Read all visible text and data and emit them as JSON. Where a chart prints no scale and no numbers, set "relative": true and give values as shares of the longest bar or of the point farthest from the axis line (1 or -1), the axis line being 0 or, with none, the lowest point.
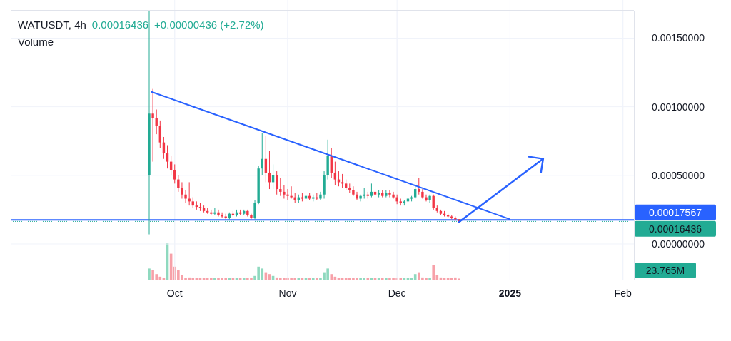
{
  "chart_data": [
    {
      "type": "candlestick",
      "title": "WATUSDT, 4h",
      "annotations": [
        "0.00016436",
        "+0.00000436 (+2.72%)"
      ],
      "x": [
        "2024-09-24",
        "2024-09-25",
        "2024-09-26",
        "2024-09-27",
        "2024-09-28",
        "2024-09-29",
        "2024-09-30",
        "2024-10-01",
        "2024-10-02",
        "2024-10-03",
        "2024-10-04",
        "2024-10-05",
        "2024-10-06",
        "2024-10-07",
        "2024-10-08",
        "2024-10-09",
        "2024-10-10",
        "2024-10-11",
        "2024-10-12",
        "2024-10-13",
        "2024-10-14",
        "2024-10-15",
        "2024-10-16",
        "2024-10-17",
        "2024-10-18",
        "2024-10-19",
        "2024-10-20",
        "2024-10-21",
        "2024-10-22",
        "2024-10-23",
        "2024-10-24",
        "2024-10-25",
        "2024-10-26",
        "2024-10-27",
        "2024-10-28",
        "2024-10-29",
        "2024-10-30",
        "2024-10-31",
        "2024-11-01",
        "2024-11-02",
        "2024-11-03",
        "2024-11-04",
        "2024-11-05",
        "2024-11-06",
        "2024-11-07",
        "2024-11-08",
        "2024-11-09",
        "2024-11-10",
        "2024-11-11",
        "2024-11-12",
        "2024-11-13",
        "2024-11-14",
        "2024-11-15",
        "2024-11-16",
        "2024-11-17",
        "2024-11-18",
        "2024-11-19",
        "2024-11-20",
        "2024-11-21",
        "2024-11-22",
        "2024-11-23",
        "2024-11-24",
        "2024-11-25",
        "2024-11-26",
        "2024-11-27",
        "2024-11-28",
        "2024-11-29",
        "2024-11-30",
        "2024-12-01",
        "2024-12-02",
        "2024-12-03",
        "2024-12-04",
        "2024-12-05",
        "2024-12-06",
        "2024-12-07",
        "2024-12-08",
        "2024-12-09",
        "2024-12-10",
        "2024-12-11",
        "2024-12-12",
        "2024-12-13",
        "2024-12-14",
        "2024-12-15",
        "2024-12-16",
        "2024-12-17",
        "2024-12-18"
      ],
      "ohlc": [
        [
          0.0005,
          0.0017,
          7e-05,
          0.00095
        ],
        [
          0.00095,
          0.00113,
          0.0006,
          0.00092
        ],
        [
          0.00092,
          0.00098,
          0.0008,
          0.00086
        ],
        [
          0.00086,
          0.0009,
          0.0007,
          0.00074
        ],
        [
          0.00074,
          0.00078,
          0.00062,
          0.00066
        ],
        [
          0.00066,
          0.00072,
          0.00055,
          0.0006
        ],
        [
          0.0006,
          0.00064,
          0.0005,
          0.00054
        ],
        [
          0.00054,
          0.00058,
          0.00044,
          0.00047
        ],
        [
          0.00047,
          0.0005,
          0.00038,
          0.00041
        ],
        [
          0.00041,
          0.00045,
          0.00033,
          0.00036
        ],
        [
          0.00036,
          0.00039,
          0.0003,
          0.00033
        ],
        [
          0.00033,
          0.00045,
          0.00028,
          0.00031
        ],
        [
          0.00031,
          0.00034,
          0.00026,
          0.00028
        ],
        [
          0.00028,
          0.00031,
          0.00025,
          0.00027
        ],
        [
          0.00027,
          0.0003,
          0.00024,
          0.00026
        ],
        [
          0.00026,
          0.00028,
          0.00023,
          0.00024
        ],
        [
          0.00024,
          0.00026,
          0.00022,
          0.00023
        ],
        [
          0.00023,
          0.00025,
          0.00021,
          0.00022
        ],
        [
          0.00022,
          0.00026,
          0.00021,
          0.00023
        ],
        [
          0.00023,
          0.00025,
          0.0002,
          0.00021
        ],
        [
          0.00021,
          0.00023,
          0.00019,
          0.0002
        ],
        [
          0.0002,
          0.00022,
          0.00018,
          0.00019
        ],
        [
          0.00019,
          0.00023,
          0.00018,
          0.00022
        ],
        [
          0.00022,
          0.00024,
          0.0002,
          0.00021
        ],
        [
          0.00021,
          0.00025,
          0.0002,
          0.00023
        ],
        [
          0.00023,
          0.00025,
          0.00021,
          0.00022
        ],
        [
          0.00022,
          0.00025,
          0.00021,
          0.00024
        ],
        [
          0.00024,
          0.00025,
          0.0002,
          0.00021
        ],
        [
          0.00021,
          0.00022,
          0.00018,
          0.00019
        ],
        [
          0.00019,
          0.00032,
          0.00018,
          0.0003
        ],
        [
          0.0003,
          0.00057,
          0.00029,
          0.00055
        ],
        [
          0.00055,
          0.00081,
          0.0005,
          0.00062
        ],
        [
          0.00062,
          0.00079,
          0.00045,
          0.00052
        ],
        [
          0.00052,
          0.00068,
          0.0004,
          0.00045
        ],
        [
          0.00045,
          0.00058,
          0.0004,
          0.0005
        ],
        [
          0.0005,
          0.00053,
          0.00036,
          0.0004
        ],
        [
          0.0004,
          0.00048,
          0.00035,
          0.00038
        ],
        [
          0.00038,
          0.00043,
          0.00033,
          0.00036
        ],
        [
          0.00036,
          0.0004,
          0.00032,
          0.00035
        ],
        [
          0.00035,
          0.00042,
          0.00033,
          0.00034
        ],
        [
          0.00034,
          0.00037,
          0.0003,
          0.00032
        ],
        [
          0.00032,
          0.00036,
          0.0003,
          0.00034
        ],
        [
          0.00034,
          0.00037,
          0.00031,
          0.00033
        ],
        [
          0.00033,
          0.00036,
          0.00031,
          0.00035
        ],
        [
          0.00035,
          0.00037,
          0.00032,
          0.00033
        ],
        [
          0.00033,
          0.00036,
          0.00031,
          0.00034
        ],
        [
          0.00034,
          0.00037,
          0.00032,
          0.00033
        ],
        [
          0.00033,
          0.00038,
          0.00032,
          0.00036
        ],
        [
          0.00036,
          0.00053,
          0.00033,
          0.0005
        ],
        [
          0.0005,
          0.00076,
          0.00047,
          0.00064
        ],
        [
          0.00064,
          0.0007,
          0.00048,
          0.00052
        ],
        [
          0.00052,
          0.0006,
          0.00043,
          0.00047
        ],
        [
          0.00047,
          0.00053,
          0.00042,
          0.00045
        ],
        [
          0.00045,
          0.00051,
          0.00041,
          0.00044
        ],
        [
          0.00044,
          0.00047,
          0.00039,
          0.00041
        ],
        [
          0.00041,
          0.00044,
          0.00037,
          0.00039
        ],
        [
          0.00039,
          0.00042,
          0.00035,
          0.00036
        ],
        [
          0.00036,
          0.00038,
          0.00032,
          0.00033
        ],
        [
          0.00033,
          0.00036,
          0.00031,
          0.00035
        ],
        [
          0.00035,
          0.00041,
          0.00033,
          0.00036
        ],
        [
          0.00036,
          0.00038,
          0.00033,
          0.00035
        ],
        [
          0.00035,
          0.00044,
          0.00034,
          0.00038
        ],
        [
          0.00038,
          0.0004,
          0.00034,
          0.00036
        ],
        [
          0.00036,
          0.00039,
          0.00034,
          0.00037
        ],
        [
          0.00037,
          0.00039,
          0.00034,
          0.00035
        ],
        [
          0.00035,
          0.00039,
          0.00034,
          0.00037
        ],
        [
          0.00037,
          0.00039,
          0.00034,
          0.00036
        ],
        [
          0.00036,
          0.00038,
          0.00033,
          0.00034
        ],
        [
          0.00034,
          0.00036,
          0.00029,
          0.00031
        ],
        [
          0.00031,
          0.00033,
          0.00028,
          0.0003
        ],
        [
          0.0003,
          0.00032,
          0.00028,
          0.00031
        ],
        [
          0.00031,
          0.00034,
          0.0003,
          0.00033
        ],
        [
          0.00033,
          0.00035,
          0.00031,
          0.00034
        ],
        [
          0.00034,
          0.00042,
          0.00033,
          0.0004
        ],
        [
          0.0004,
          0.00048,
          0.00036,
          0.00038
        ],
        [
          0.00038,
          0.0004,
          0.00033,
          0.00034
        ],
        [
          0.00034,
          0.00036,
          0.00031,
          0.00032
        ],
        [
          0.00032,
          0.00036,
          0.0003,
          0.00035
        ],
        [
          0.00035,
          0.00036,
          0.00025,
          0.00026
        ],
        [
          0.00026,
          0.00028,
          0.00023,
          0.00024
        ],
        [
          0.00024,
          0.00025,
          0.00021,
          0.00022
        ],
        [
          0.00022,
          0.00024,
          0.0002,
          0.00021
        ],
        [
          0.00021,
          0.00022,
          0.00019,
          0.0002
        ],
        [
          0.0002,
          0.00021,
          0.00018,
          0.00019
        ],
        [
          0.00019,
          0.0002,
          0.00017,
          0.00018
        ],
        [
          0.00018,
          0.00018,
          0.00016,
          0.00016
        ]
      ],
      "series": [
        {
          "type": "line",
          "color": "#2962ff",
          "x": [
            "2024-09-24T12:00",
            "2025-01-01"
          ],
          "values": [
            0.00111,
            0.00018
          ]
        }
      ],
      "ref_lines": [
        {
          "axis": "y",
          "value": 0.00017567,
          "label": "0.00017567",
          "color": "#2962ff",
          "line_style": "solid"
        },
        {
          "axis": "y",
          "value": 0.00016436,
          "label": "0.00016436",
          "color": "#22ab94",
          "line_style": "dotted"
        }
      ],
      "xlim": [
        "2024-08-17",
        "2025-02-04"
      ],
      "xticks": [
        {
          "value": "2024-10-01",
          "label": null
        },
        {
          "value": "2024-11-01",
          "label": null
        },
        {
          "value": "2024-12-01",
          "label": null
        },
        {
          "value": "2025-01-01",
          "label": null
        },
        {
          "value": "2025-02-01",
          "label": null
        }
      ],
      "ylim": [
        -0.00026,
        0.0017
      ],
      "yticks": [
        {
          "value": 0,
          "label": "0.00000000"
        },
        {
          "value": 0.0005,
          "label": "0.00050000"
        },
        {
          "value": 0.001,
          "label": "0.00100000"
        },
        {
          "value": 0.0015,
          "label": "0.00150000"
        }
      ],
      "grid": true,
      "tick_labels": "y"
    },
    {
      "type": "bar",
      "title": "Volume",
      "relative": true,
      "annotations": [
        "23.765M"
      ],
      "x": [
        "2024-09-24",
        "2024-09-25",
        "2024-09-26",
        "2024-09-27",
        "2024-09-28",
        "2024-09-29",
        "2024-09-30",
        "2024-10-01",
        "2024-10-02",
        "2024-10-03",
        "2024-10-04",
        "2024-10-05",
        "2024-10-06",
        "2024-10-07",
        "2024-10-08",
        "2024-10-09",
        "2024-10-10",
        "2024-10-11",
        "2024-10-12",
        "2024-10-13",
        "2024-10-14",
        "2024-10-15",
        "2024-10-16",
        "2024-10-17",
        "2024-10-18",
        "2024-10-19",
        "2024-10-20",
        "2024-10-21",
        "2024-10-22",
        "2024-10-23",
        "2024-10-24",
        "2024-10-25",
        "2024-10-26",
        "2024-10-27",
        "2024-10-28",
        "2024-10-29",
        "2024-10-30",
        "2024-10-31",
        "2024-11-01",
        "2024-11-02",
        "2024-11-03",
        "2024-11-04",
        "2024-11-05",
        "2024-11-06",
        "2024-11-07",
        "2024-11-08",
        "2024-11-09",
        "2024-11-10",
        "2024-11-11",
        "2024-11-12",
        "2024-11-13",
        "2024-11-14",
        "2024-11-15",
        "2024-11-16",
        "2024-11-17",
        "2024-11-18",
        "2024-11-19",
        "2024-11-20",
        "2024-11-21",
        "2024-11-22",
        "2024-11-23",
        "2024-11-24",
        "2024-11-25",
        "2024-11-26",
        "2024-11-27",
        "2024-11-28",
        "2024-11-29",
        "2024-11-30",
        "2024-12-01",
        "2024-12-02",
        "2024-12-03",
        "2024-12-04",
        "2024-12-05",
        "2024-12-06",
        "2024-12-07",
        "2024-12-08",
        "2024-12-09",
        "2024-12-10",
        "2024-12-11",
        "2024-12-12",
        "2024-12-13",
        "2024-12-14",
        "2024-12-15",
        "2024-12-16",
        "2024-12-17",
        "2024-12-18"
      ],
      "values": [
        0.3,
        0.25,
        0.15,
        0.08,
        0.05,
        1,
        0.7,
        0.35,
        0.25,
        0.12,
        0.05,
        0.06,
        0.04,
        0.04,
        0.04,
        0.04,
        0.04,
        0.04,
        0.05,
        0.04,
        0.04,
        0.04,
        0.04,
        0.04,
        0.05,
        0.04,
        0.04,
        0.04,
        0.04,
        0.1,
        0.35,
        0.3,
        0.2,
        0.15,
        0.1,
        0.06,
        0.05,
        0.05,
        0.04,
        0.04,
        0.04,
        0.04,
        0.04,
        0.04,
        0.04,
        0.04,
        0.04,
        0.05,
        0.2,
        0.3,
        0.15,
        0.08,
        0.05,
        0.05,
        0.04,
        0.04,
        0.04,
        0.04,
        0.04,
        0.05,
        0.04,
        0.05,
        0.04,
        0.04,
        0.04,
        0.04,
        0.04,
        0.04,
        0.04,
        0.04,
        0.04,
        0.04,
        0.05,
        0.15,
        0.2,
        0.06,
        0.04,
        0.05,
        0.4,
        0.12,
        0.06,
        0.05,
        0.04,
        0.04,
        0.06,
        0.03
      ],
      "colors": [
        "#8fd9bf",
        "#f7a1a9",
        "#f7a1a9",
        "#f7a1a9",
        "#f7a1a9",
        "#8fd9bf",
        "#f7a1a9",
        "#f7a1a9",
        "#f7a1a9",
        "#f7a1a9",
        "#f7a1a9",
        "#f7a1a9",
        "#f7a1a9",
        "#f7a1a9",
        "#f7a1a9",
        "#f7a1a9",
        "#f7a1a9",
        "#f7a1a9",
        "#8fd9bf",
        "#f7a1a9",
        "#f7a1a9",
        "#f7a1a9",
        "#8fd9bf",
        "#f7a1a9",
        "#8fd9bf",
        "#f7a1a9",
        "#8fd9bf",
        "#f7a1a9",
        "#f7a1a9",
        "#8fd9bf",
        "#8fd9bf",
        "#8fd9bf",
        "#f7a1a9",
        "#f7a1a9",
        "#8fd9bf",
        "#f7a1a9",
        "#f7a1a9",
        "#f7a1a9",
        "#f7a1a9",
        "#f7a1a9",
        "#f7a1a9",
        "#8fd9bf",
        "#f7a1a9",
        "#8fd9bf",
        "#f7a1a9",
        "#8fd9bf",
        "#f7a1a9",
        "#8fd9bf",
        "#8fd9bf",
        "#8fd9bf",
        "#f7a1a9",
        "#f7a1a9",
        "#f7a1a9",
        "#f7a1a9",
        "#f7a1a9",
        "#f7a1a9",
        "#f7a1a9",
        "#f7a1a9",
        "#8fd9bf",
        "#8fd9bf",
        "#f7a1a9",
        "#8fd9bf",
        "#f7a1a9",
        "#8fd9bf",
        "#f7a1a9",
        "#8fd9bf",
        "#f7a1a9",
        "#f7a1a9",
        "#f7a1a9",
        "#f7a1a9",
        "#8fd9bf",
        "#8fd9bf",
        "#8fd9bf",
        "#8fd9bf",
        "#f7a1a9",
        "#f7a1a9",
        "#f7a1a9",
        "#8fd9bf",
        "#f7a1a9",
        "#f7a1a9",
        "#f7a1a9",
        "#f7a1a9",
        "#f7a1a9",
        "#f7a1a9",
        "#f7a1a9",
        "#f7a1a9"
      ],
      "xlim": [
        "2024-08-17",
        "2025-02-04"
      ],
      "xticks": [
        {
          "value": "2024-10-01",
          "label": "Oct"
        },
        {
          "value": "2024-11-01",
          "label": "Nov"
        },
        {
          "value": "2024-12-01",
          "label": "Dec"
        },
        {
          "value": "2025-01-01",
          "label": "2025"
        },
        {
          "value": "2025-02-01",
          "label": "Feb"
        }
      ],
      "grid": "x",
      "tick_labels": "x"
    }
  ]
}
